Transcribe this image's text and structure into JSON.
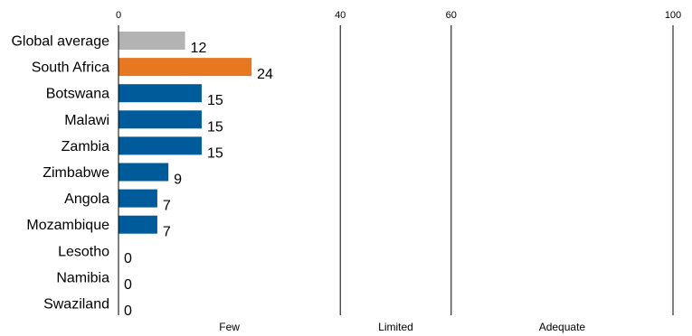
{
  "chart_data": {
    "type": "bar",
    "orientation": "horizontal",
    "categories": [
      "Global average",
      "South Africa",
      "Botswana",
      "Malawi",
      "Zambia",
      "Zimbabwe",
      "Angola",
      "Mozambique",
      "Lesotho",
      "Namibia",
      "Swaziland"
    ],
    "values": [
      12,
      24,
      15,
      15,
      15,
      9,
      7,
      7,
      0,
      0,
      0
    ],
    "bar_colors": [
      "#b3b3b3",
      "#e87722",
      "#005b9a",
      "#005b9a",
      "#005b9a",
      "#005b9a",
      "#005b9a",
      "#005b9a",
      "#005b9a",
      "#005b9a",
      "#005b9a"
    ],
    "xlim": [
      0,
      100
    ],
    "xticks": [
      "0",
      "40",
      "60",
      "100"
    ],
    "tick_values": [
      0,
      40,
      60,
      100
    ],
    "bands": [
      {
        "label": "Few",
        "from": 0,
        "to": 40
      },
      {
        "label": "Limited",
        "from": 40,
        "to": 60
      },
      {
        "label": "Adequate",
        "from": 60,
        "to": 100
      }
    ],
    "title": "",
    "xlabel": "",
    "ylabel": "",
    "grid": "vertical lines at band boundaries",
    "legend": "none"
  }
}
